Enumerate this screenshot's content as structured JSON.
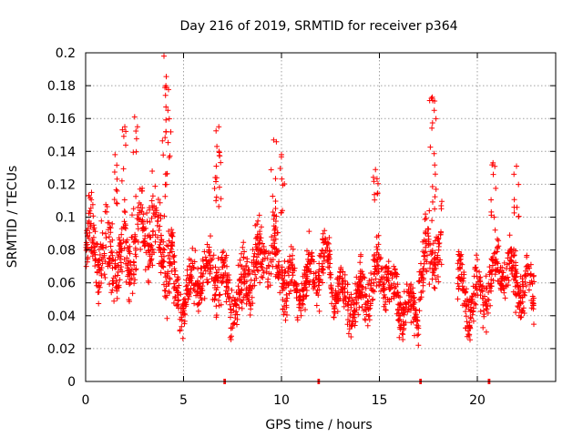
{
  "chart_data": {
    "type": "scatter",
    "title": "Day 216 of 2019, SRMTID for receiver p364",
    "xlabel": "GPS time / hours",
    "ylabel": "SRMTID / TECUs",
    "xlim": [
      0,
      24
    ],
    "ylim": [
      0,
      0.2
    ],
    "xticks": [
      0,
      5,
      10,
      15,
      20
    ],
    "xtick_labels": [
      "0",
      "5",
      "10",
      "15",
      "20"
    ],
    "yticks": [
      0,
      0.02,
      0.04,
      0.06,
      0.08,
      0.1,
      0.12,
      0.14,
      0.16,
      0.18,
      0.2
    ],
    "ytick_labels": [
      "0",
      "0.02",
      "0.04",
      "0.06",
      "0.08",
      "0.1",
      "0.12",
      "0.14",
      "0.16",
      "0.18",
      "0.2"
    ],
    "grid": true,
    "marker": "+",
    "color": "#ff0000",
    "series": [
      {
        "name": "SRMTID",
        "peaks": [
          {
            "x": 0.3,
            "y": 0.115
          },
          {
            "x": 1.5,
            "y": 0.138
          },
          {
            "x": 2.0,
            "y": 0.155
          },
          {
            "x": 2.5,
            "y": 0.161
          },
          {
            "x": 3.4,
            "y": 0.128
          },
          {
            "x": 4.0,
            "y": 0.198
          },
          {
            "x": 4.1,
            "y": 0.18
          },
          {
            "x": 4.2,
            "y": 0.165
          },
          {
            "x": 6.8,
            "y": 0.155
          },
          {
            "x": 6.7,
            "y": 0.143
          },
          {
            "x": 9.6,
            "y": 0.147
          },
          {
            "x": 10.0,
            "y": 0.138
          },
          {
            "x": 14.8,
            "y": 0.129
          },
          {
            "x": 17.7,
            "y": 0.173
          },
          {
            "x": 17.8,
            "y": 0.165
          },
          {
            "x": 20.8,
            "y": 0.133
          },
          {
            "x": 22.0,
            "y": 0.131
          }
        ],
        "zero_points": [
          {
            "x": 7.1,
            "y": 0
          },
          {
            "x": 11.9,
            "y": 0
          },
          {
            "x": 17.1,
            "y": 0
          },
          {
            "x": 20.6,
            "y": 0
          }
        ],
        "segments": [
          {
            "x0": 0.0,
            "x1": 1.0,
            "base": 0.072,
            "spread": 0.018
          },
          {
            "x0": 1.0,
            "x1": 3.0,
            "base": 0.085,
            "spread": 0.022
          },
          {
            "x0": 3.0,
            "x1": 4.5,
            "base": 0.078,
            "spread": 0.02
          },
          {
            "x0": 4.5,
            "x1": 6.5,
            "base": 0.058,
            "spread": 0.015
          },
          {
            "x0": 6.5,
            "x1": 8.0,
            "base": 0.06,
            "spread": 0.018
          },
          {
            "x0": 8.0,
            "x1": 10.5,
            "base": 0.068,
            "spread": 0.018
          },
          {
            "x0": 10.5,
            "x1": 12.5,
            "base": 0.063,
            "spread": 0.016
          },
          {
            "x0": 12.5,
            "x1": 14.0,
            "base": 0.055,
            "spread": 0.015
          },
          {
            "x0": 14.0,
            "x1": 15.5,
            "base": 0.058,
            "spread": 0.017
          },
          {
            "x0": 15.5,
            "x1": 17.0,
            "base": 0.05,
            "spread": 0.015
          },
          {
            "x0": 17.0,
            "x1": 18.2,
            "base": 0.075,
            "spread": 0.02
          },
          {
            "x0": 18.2,
            "x1": 19.0,
            "base": 0.0,
            "spread": 0.0
          },
          {
            "x0": 19.0,
            "x1": 21.0,
            "base": 0.058,
            "spread": 0.017
          },
          {
            "x0": 21.0,
            "x1": 22.9,
            "base": 0.062,
            "spread": 0.016
          }
        ]
      }
    ]
  }
}
